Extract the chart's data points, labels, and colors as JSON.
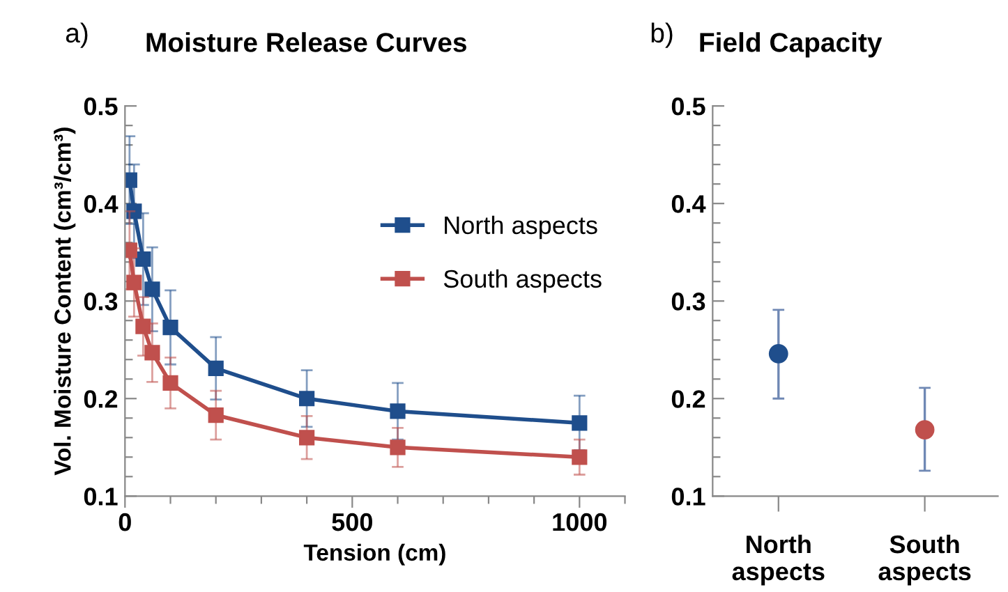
{
  "chart_data": [
    {
      "type": "line",
      "title": "Moisture Release Curves",
      "annotations": [
        "a)"
      ],
      "xlabel": "Tension (cm)",
      "ylabel": "Vol. Moisture Content (cm³/cm³)",
      "x": [
        10,
        20,
        40,
        60,
        100,
        200,
        400,
        600,
        1000
      ],
      "series": [
        {
          "name": "North aspects",
          "color": "#1f4e8c",
          "values": [
            0.424,
            0.392,
            0.343,
            0.312,
            0.273,
            0.231,
            0.2,
            0.187,
            0.175
          ],
          "errors": [
            0.045,
            0.048,
            0.047,
            0.043,
            0.038,
            0.032,
            0.029,
            0.029,
            0.028
          ]
        },
        {
          "name": "South aspects",
          "color": "#c0504d",
          "values": [
            0.352,
            0.319,
            0.274,
            0.247,
            0.216,
            0.183,
            0.16,
            0.15,
            0.14
          ],
          "errors": [
            0.04,
            0.035,
            0.03,
            0.03,
            0.026,
            0.025,
            0.022,
            0.02,
            0.018
          ]
        }
      ],
      "marker": "square",
      "line_style": "solid",
      "legend": "right",
      "grid": false,
      "xlim": [
        0,
        1100
      ],
      "xticks": [
        0,
        {
          "value": 100,
          "label": null
        },
        {
          "value": 200,
          "label": null
        },
        {
          "value": 300,
          "label": null
        },
        {
          "value": 400,
          "label": null
        },
        500,
        {
          "value": 600,
          "label": null
        },
        {
          "value": 700,
          "label": null
        },
        {
          "value": 800,
          "label": null
        },
        {
          "value": 900,
          "label": null
        },
        1000,
        {
          "value": 1100,
          "label": null
        }
      ],
      "ylim": [
        0.1,
        0.5
      ],
      "yticks": [
        0.1,
        {
          "value": 0.12,
          "label": null
        },
        {
          "value": 0.14,
          "label": null
        },
        {
          "value": 0.16,
          "label": null
        },
        {
          "value": 0.18,
          "label": null
        },
        0.2,
        {
          "value": 0.22,
          "label": null
        },
        {
          "value": 0.24,
          "label": null
        },
        {
          "value": 0.26,
          "label": null
        },
        {
          "value": 0.28,
          "label": null
        },
        0.3,
        {
          "value": 0.32,
          "label": null
        },
        {
          "value": 0.34,
          "label": null
        },
        {
          "value": 0.36,
          "label": null
        },
        {
          "value": 0.38,
          "label": null
        },
        0.4,
        {
          "value": 0.42,
          "label": null
        },
        {
          "value": 0.44,
          "label": null
        },
        {
          "value": 0.46,
          "label": null
        },
        {
          "value": 0.48,
          "label": null
        },
        0.5
      ]
    },
    {
      "type": "scatter",
      "title": "Field Capacity",
      "annotations": [
        "b)"
      ],
      "categories": [
        "North\naspects",
        "South\naspects"
      ],
      "values": [
        0.246,
        0.168
      ],
      "colors": [
        "#1f4e8c",
        "#c0504d"
      ],
      "errors": [
        [
          0.2,
          0.291
        ],
        [
          0.126,
          0.211
        ]
      ],
      "marker": "circle",
      "grid": false,
      "ylim": [
        0.1,
        0.5
      ],
      "yticks": [
        0.1,
        {
          "value": 0.12,
          "label": null
        },
        {
          "value": 0.14,
          "label": null
        },
        {
          "value": 0.16,
          "label": null
        },
        {
          "value": 0.18,
          "label": null
        },
        0.2,
        {
          "value": 0.22,
          "label": null
        },
        {
          "value": 0.24,
          "label": null
        },
        {
          "value": 0.26,
          "label": null
        },
        {
          "value": 0.28,
          "label": null
        },
        0.3,
        {
          "value": 0.32,
          "label": null
        },
        {
          "value": 0.34,
          "label": null
        },
        {
          "value": 0.36,
          "label": null
        },
        {
          "value": 0.38,
          "label": null
        },
        0.4,
        {
          "value": 0.42,
          "label": null
        },
        {
          "value": 0.44,
          "label": null
        },
        {
          "value": 0.46,
          "label": null
        },
        {
          "value": 0.48,
          "label": null
        },
        0.5
      ]
    }
  ]
}
